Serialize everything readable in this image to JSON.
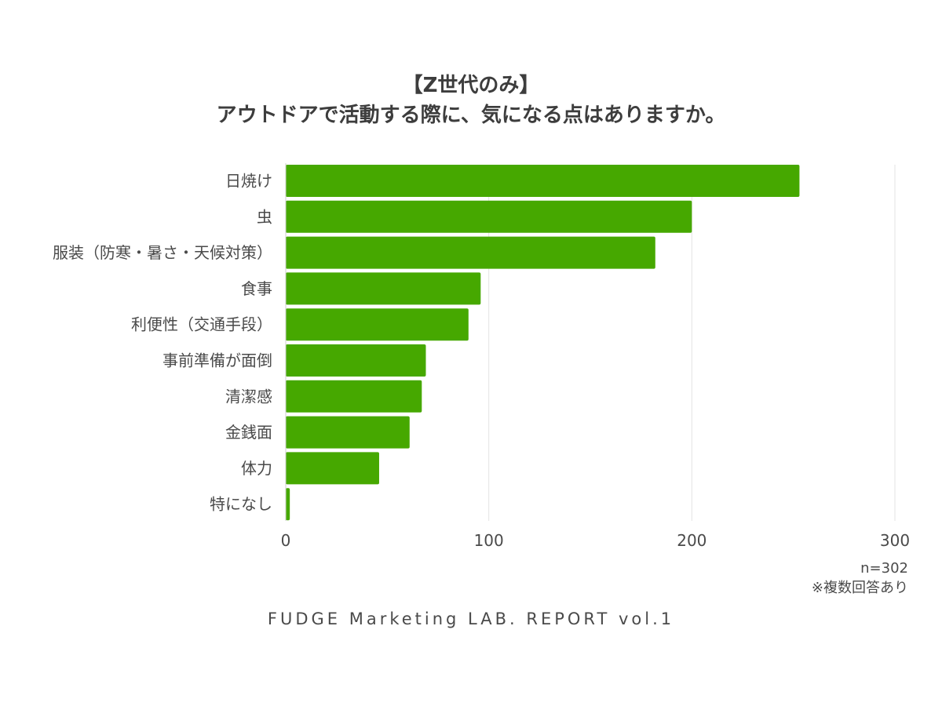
{
  "chart_data": {
    "type": "bar",
    "orientation": "horizontal",
    "title_line1": "【Z世代のみ】",
    "title_line2": "アウトドアで活動する際に、気になる点はありますか。",
    "categories": [
      "日焼け",
      "虫",
      "服装（防寒・暑さ・天候対策）",
      "食事",
      "利便性（交通手段）",
      "事前準備が面倒",
      "清潔感",
      "金銭面",
      "体力",
      "特になし"
    ],
    "values": [
      253,
      200,
      182,
      96,
      90,
      69,
      67,
      61,
      46,
      2
    ],
    "xlim": [
      0,
      300
    ],
    "xticks": [
      0,
      100,
      200,
      300
    ],
    "grid": true,
    "bar_color": "#46a800"
  },
  "notes": {
    "sample": "n=302",
    "multi_answer": "※複数回答あり"
  },
  "footer": "FUDGE Marketing LAB. REPORT vol.1"
}
